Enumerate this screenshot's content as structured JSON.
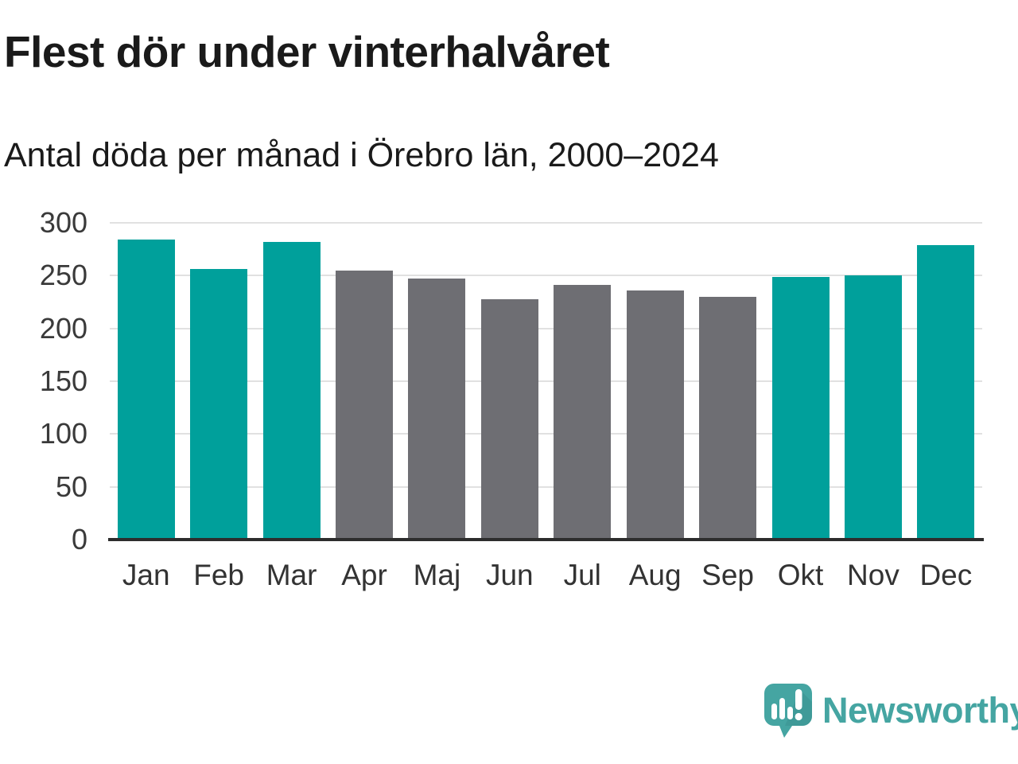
{
  "header": {
    "title": "Flest dör under vinterhalvåret",
    "subtitle": "Antal döda per månad i Örebro län, 2000–2024"
  },
  "colors": {
    "accent_teal": "#00a09b",
    "muted_gray": "#6e6e73",
    "gridline": "#e1e1e1",
    "axis": "#2d2d2d",
    "logo_teal": "#45a5a2"
  },
  "chart_data": {
    "type": "bar",
    "title": "Flest dör under vinterhalvåret",
    "subtitle": "Antal döda per månad i Örebro län, 2000–2024",
    "categories": [
      "Jan",
      "Feb",
      "Mar",
      "Apr",
      "Maj",
      "Jun",
      "Jul",
      "Aug",
      "Sep",
      "Okt",
      "Nov",
      "Dec"
    ],
    "values": [
      284,
      256,
      282,
      255,
      247,
      228,
      241,
      236,
      230,
      249,
      250,
      279
    ],
    "highlighted": [
      true,
      true,
      true,
      false,
      false,
      false,
      false,
      false,
      false,
      true,
      true,
      true
    ],
    "xlabel": "",
    "ylabel": "",
    "ylim": [
      0,
      300
    ],
    "yticks": [
      0,
      50,
      100,
      150,
      200,
      250,
      300
    ],
    "grid": "horizontal",
    "legend": "none"
  },
  "logo": {
    "brand_name": "Newsworthy"
  }
}
